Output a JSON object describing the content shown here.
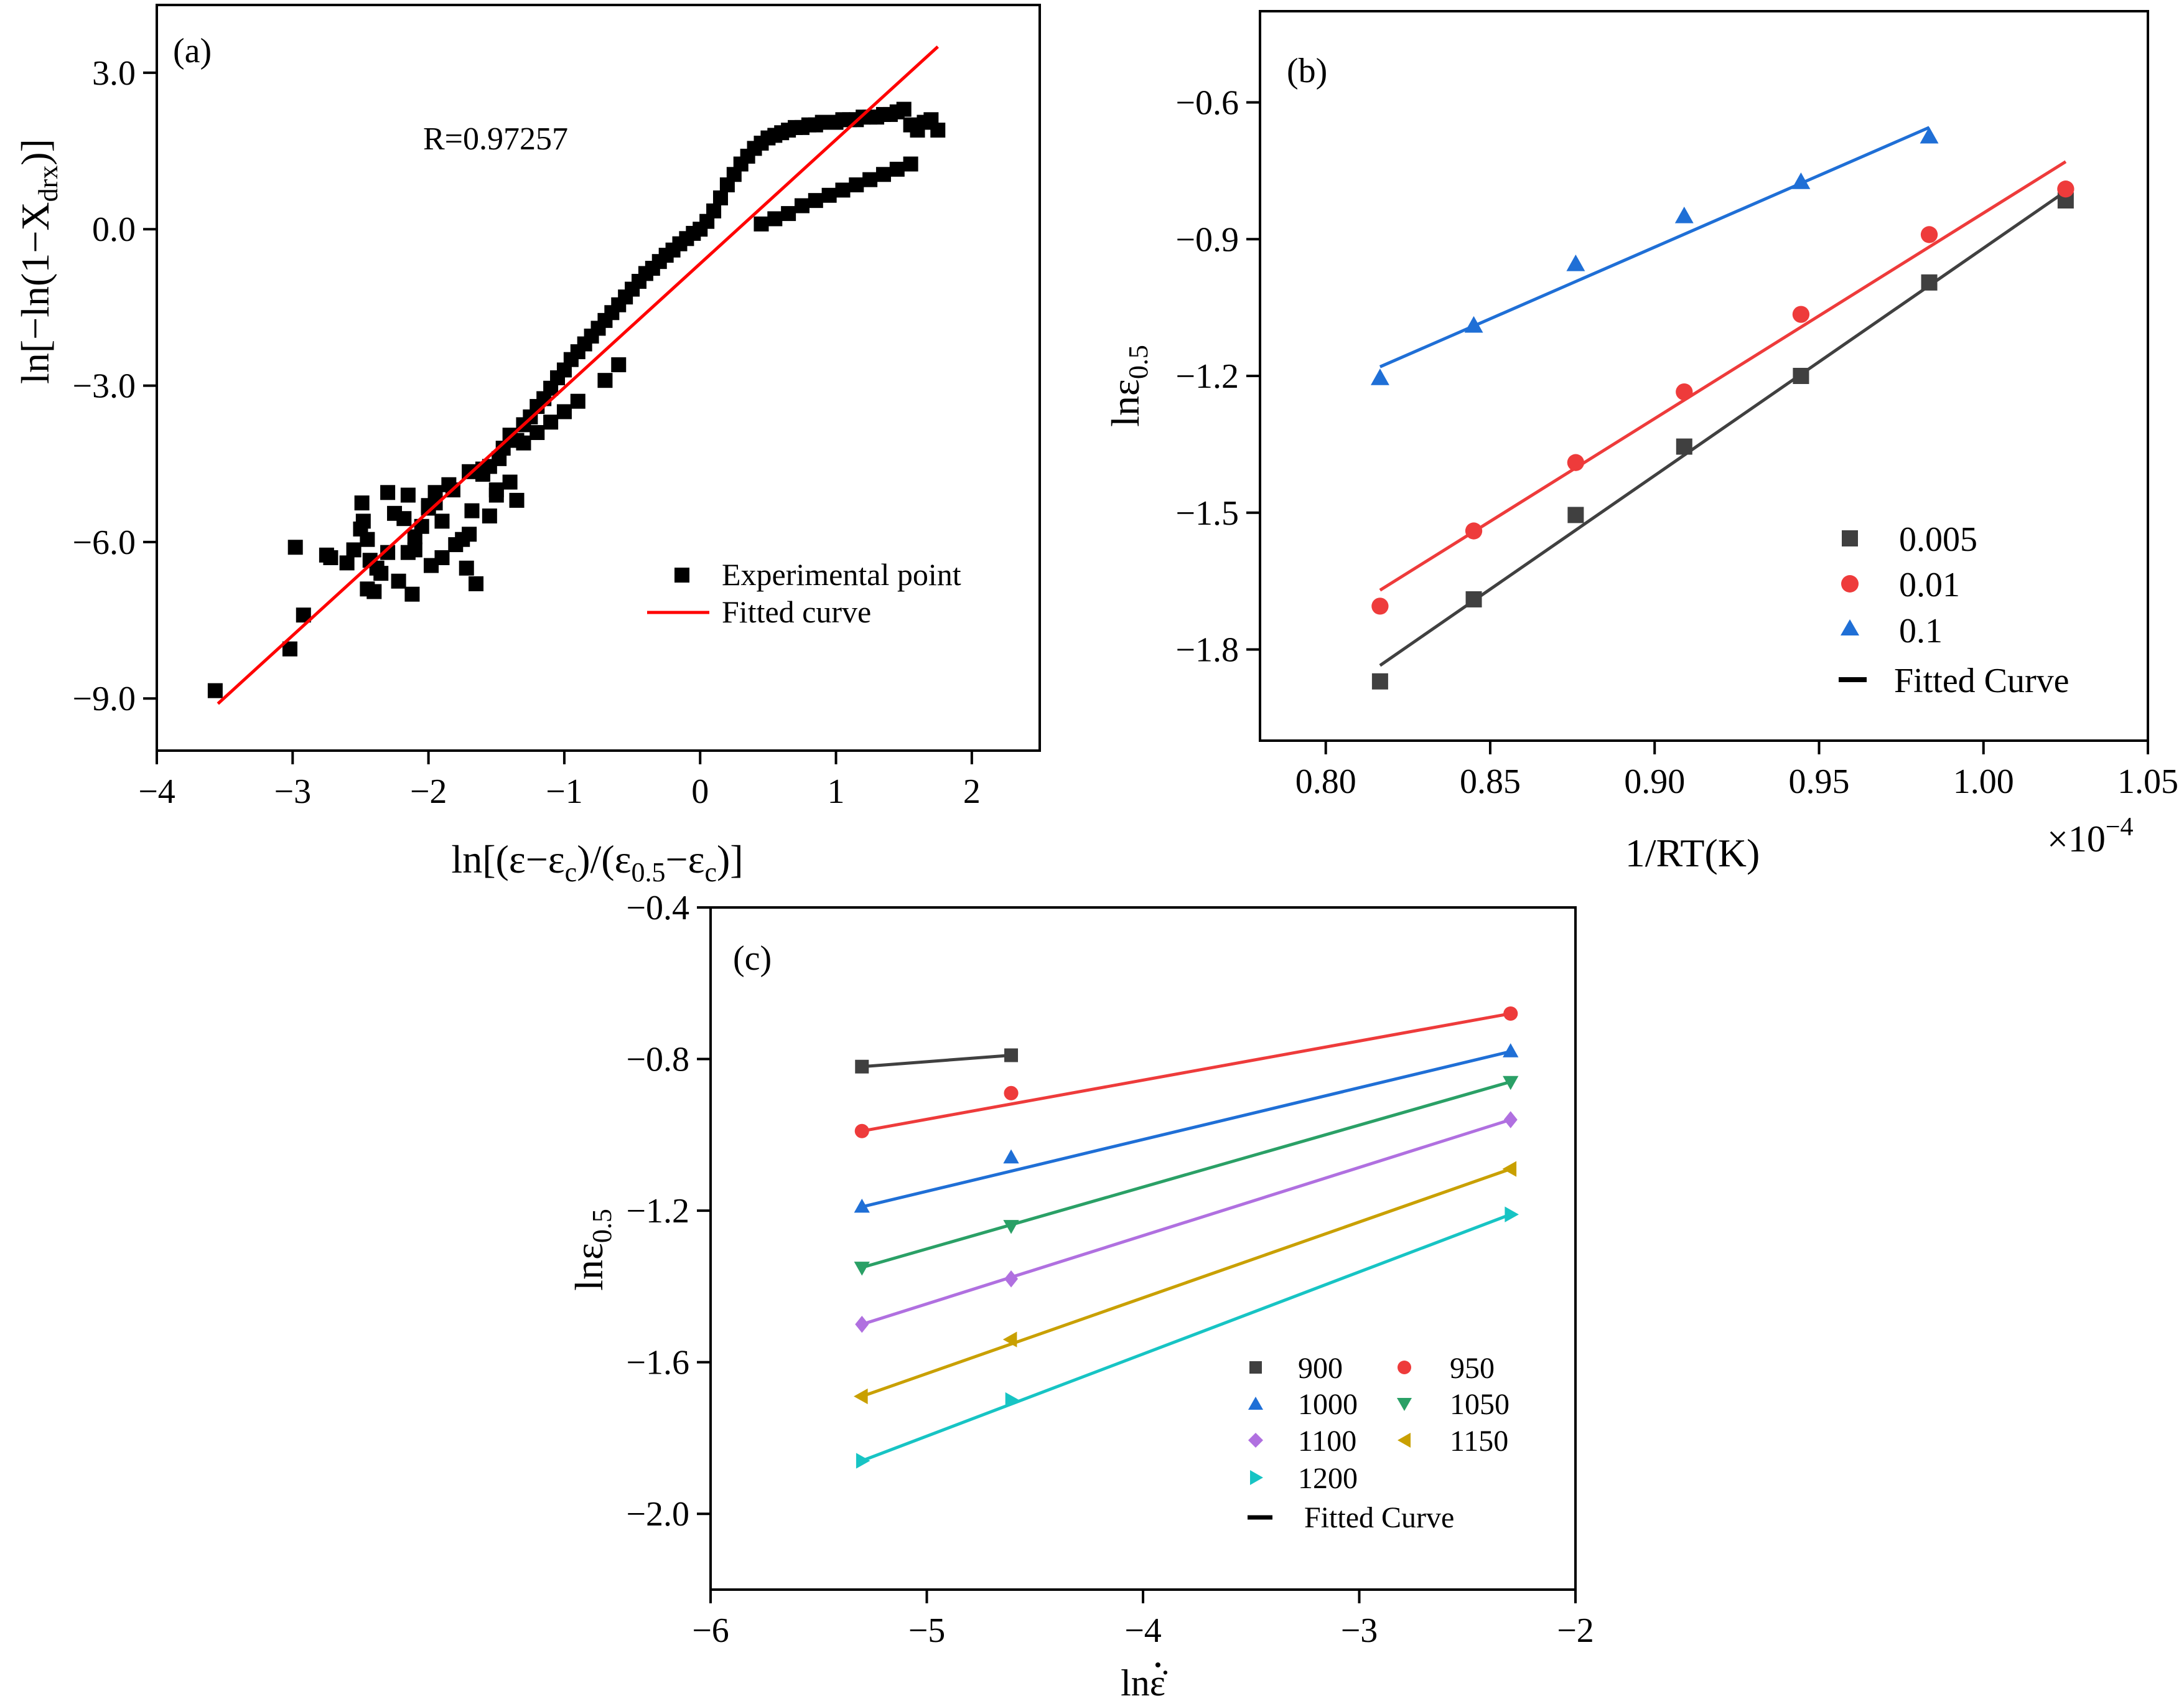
{
  "chart_data": [
    {
      "panel": "(a)",
      "type": "scatter",
      "title": "",
      "xlabel": "ln[(ε−ε_c)/(ε_0.5−ε_c)]",
      "xlabel_main": "ln[(ε−ε",
      "xlabel_sub1": "c",
      "xlabel_mid": ")/(ε",
      "xlabel_sub2": "0.5",
      "xlabel_mid2": "−ε",
      "xlabel_sub3": "c",
      "xlabel_end": ")]",
      "ylabel": "ln[−ln(1−X_drx)]",
      "ylabel_main": "ln[−ln(1−X",
      "ylabel_sub": "drx",
      "ylabel_end": ")]",
      "xlim": [
        -4,
        2.5
      ],
      "ylim": [
        -10,
        4.3
      ],
      "xticks": [
        -4,
        -3,
        -2,
        -1,
        0,
        1,
        2
      ],
      "xtick_labels": [
        "−4",
        "−3",
        "−2",
        "−1",
        "0",
        "1",
        "2"
      ],
      "yticks": [
        -9,
        -6,
        -3,
        0,
        3
      ],
      "ytick_labels": [
        "−9.0",
        "−6.0",
        "−3.0",
        "0.0",
        "3.0"
      ],
      "annotation": "R=0.97257",
      "legend": [
        "Experimental point",
        "Fitted curve"
      ],
      "legend_position": "bottom-right",
      "series": [
        {
          "name": "Experimental point",
          "x": [
            -3.57,
            -3.02,
            -2.92,
            -2.98,
            -2.75,
            -2.72,
            -2.55,
            -2.48,
            -2.5,
            -2.49,
            -2.45,
            -2.43,
            -2.4,
            -2.38,
            -2.35,
            -2.3,
            -2.25,
            -2.22,
            -2.18,
            -2.15,
            -2.12,
            -2.1,
            -2.05,
            -2.0,
            -1.98,
            -1.95,
            -1.9,
            -1.85,
            -1.82,
            -1.8,
            -1.75,
            -1.72,
            -1.7,
            -1.68,
            -1.65,
            -1.6,
            -1.55,
            -1.5,
            -1.48,
            -1.45,
            -1.4,
            -1.35,
            -1.3,
            -1.25,
            -1.2,
            -1.15,
            -1.1,
            -1.05,
            -1.0,
            -0.95,
            -0.9,
            -0.85,
            -0.8,
            -0.75,
            -0.7,
            -0.65,
            -0.6,
            -0.55,
            -0.5,
            -0.45,
            -0.4,
            -0.35,
            -0.3,
            -0.25,
            -0.2,
            -0.15,
            -0.1,
            -0.05,
            0.0,
            0.05,
            0.1,
            0.15,
            0.2,
            0.25,
            0.3,
            0.35,
            0.4,
            0.45,
            0.5,
            0.55,
            0.6,
            0.65,
            0.7,
            0.75,
            0.8,
            0.85,
            0.9,
            0.95,
            1.0,
            1.05,
            1.1,
            1.15,
            1.2,
            1.25,
            1.3,
            1.35,
            1.4,
            1.45,
            1.5,
            1.55,
            1.6,
            1.65,
            1.7,
            1.75,
            0.45,
            0.55,
            0.65,
            0.75,
            0.85,
            0.95,
            1.05,
            1.15,
            1.25,
            1.35,
            1.45,
            1.55,
            -1.3,
            -1.2,
            -1.1,
            -1.0,
            -0.9,
            -1.6,
            -1.5,
            -1.4,
            -2.3,
            -2.1,
            -1.9,
            -1.7,
            -2.15,
            -1.95,
            -2.45,
            -2.6,
            -2.0,
            -1.55,
            -1.35,
            -0.7,
            -0.6
          ],
          "y": [
            -8.85,
            -8.05,
            -7.4,
            -6.1,
            -6.25,
            -6.3,
            -6.15,
            -5.6,
            -5.75,
            -5.25,
            -6.9,
            -6.35,
            -6.95,
            -6.5,
            -6.6,
            -6.2,
            -5.45,
            -6.75,
            -5.55,
            -5.1,
            -7.0,
            -6.15,
            -5.7,
            -5.35,
            -6.45,
            -5.25,
            -6.3,
            -4.9,
            -5.0,
            -6.05,
            -5.95,
            -6.5,
            -4.65,
            -5.4,
            -6.8,
            -4.6,
            -4.55,
            -5.1,
            -4.4,
            -4.2,
            -3.95,
            -4.05,
            -3.75,
            -3.6,
            -3.4,
            -3.25,
            -3.05,
            -2.85,
            -2.7,
            -2.5,
            -2.35,
            -2.2,
            -2.05,
            -1.9,
            -1.75,
            -1.6,
            -1.45,
            -1.3,
            -1.15,
            -1.0,
            -0.85,
            -0.75,
            -0.62,
            -0.5,
            -0.4,
            -0.28,
            -0.18,
            -0.08,
            0.0,
            0.15,
            0.35,
            0.6,
            0.85,
            1.05,
            1.25,
            1.4,
            1.55,
            1.65,
            1.75,
            1.8,
            1.85,
            1.9,
            1.95,
            1.95,
            2.0,
            2.0,
            2.05,
            2.05,
            2.05,
            2.1,
            2.1,
            2.1,
            2.15,
            2.15,
            2.15,
            2.2,
            2.2,
            2.25,
            2.3,
            2.0,
            1.9,
            2.05,
            2.1,
            1.9,
            0.1,
            0.2,
            0.3,
            0.45,
            0.55,
            0.65,
            0.75,
            0.85,
            0.95,
            1.05,
            1.15,
            1.25,
            -4.1,
            -3.9,
            -3.7,
            -3.5,
            -3.3,
            -4.7,
            -5.0,
            -4.85,
            -5.05,
            -5.9,
            -5.6,
            -5.85,
            -6.2,
            -5.05,
            -5.95,
            -6.4,
            -5.3,
            -5.5,
            -5.2,
            -2.9,
            -2.6
          ]
        },
        {
          "name": "Fitted curve",
          "type": "line",
          "color": "#ff0000",
          "x": [
            -3.55,
            1.75
          ],
          "y": [
            -9.1,
            3.5
          ]
        }
      ]
    },
    {
      "panel": "(b)",
      "type": "scatter",
      "title": "",
      "xlabel": "1/RT(K)",
      "x_multiplier": "×10",
      "x_multiplier_exp": "−4",
      "ylabel": "lnε_0.5",
      "ylabel_main": "lnε",
      "ylabel_sub": "0.5",
      "xlim": [
        0.78,
        1.05
      ],
      "ylim": [
        -2.0,
        -0.4
      ],
      "xticks": [
        0.8,
        0.85,
        0.9,
        0.95,
        1.0,
        1.05
      ],
      "xtick_labels": [
        "0.80",
        "0.85",
        "0.90",
        "0.95",
        "1.00",
        "1.05"
      ],
      "yticks": [
        -1.8,
        -1.5,
        -1.2,
        -0.9,
        -0.6
      ],
      "ytick_labels": [
        "−1.8",
        "−1.5",
        "−1.2",
        "−0.9",
        "−0.6"
      ],
      "legend": [
        "0.005",
        "0.01",
        "0.1",
        "Fitted Curve"
      ],
      "legend_position": "bottom-right",
      "series": [
        {
          "name": "0.005",
          "marker": "square",
          "color": "#404040",
          "x": [
            0.8165,
            0.845,
            0.876,
            0.909,
            0.9445,
            0.9835,
            1.025
          ],
          "y": [
            -1.87,
            -1.69,
            -1.505,
            -1.355,
            -1.2,
            -0.995,
            -0.815
          ],
          "fit": {
            "x": [
              0.8165,
              1.025
            ],
            "y": [
              -1.835,
              -0.795
            ]
          }
        },
        {
          "name": "0.01",
          "marker": "circle",
          "color": "#ee3b3b",
          "x": [
            0.8165,
            0.845,
            0.876,
            0.909,
            0.9445,
            0.9835,
            1.025
          ],
          "y": [
            -1.705,
            -1.54,
            -1.39,
            -1.235,
            -1.065,
            -0.89,
            -0.79
          ],
          "fit": {
            "x": [
              0.8165,
              1.025
            ],
            "y": [
              -1.67,
              -0.73
            ]
          }
        },
        {
          "name": "0.1",
          "marker": "triangle-up",
          "color": "#1f6fd6",
          "x": [
            0.8165,
            0.845,
            0.876,
            0.909,
            0.9445,
            0.9835
          ],
          "y": [
            -1.205,
            -1.09,
            -0.955,
            -0.85,
            -0.775,
            -0.675
          ],
          "fit": {
            "x": [
              0.8165,
              0.9835
            ],
            "y": [
              -1.18,
              -0.655
            ]
          }
        }
      ]
    },
    {
      "panel": "(c)",
      "type": "scatter",
      "title": "",
      "xlabel": "lnε̇",
      "ylabel": "lnε_0.5",
      "ylabel_main": "lnε",
      "ylabel_sub": "0.5",
      "xlim": [
        -6,
        -2
      ],
      "ylim": [
        -2.2,
        -0.4
      ],
      "xticks": [
        -6,
        -5,
        -4,
        -3,
        -2
      ],
      "xtick_labels": [
        "−6",
        "−5",
        "−4",
        "−3",
        "−2"
      ],
      "yticks": [
        -2.0,
        -1.6,
        -1.2,
        -0.8,
        -0.4
      ],
      "ytick_labels": [
        "−2.0",
        "−1.6",
        "−1.2",
        "−0.8",
        "−0.4"
      ],
      "legend": [
        "900",
        "950",
        "1000",
        "1050",
        "1100",
        "1150",
        "1200",
        "Fitted Curve"
      ],
      "legend_position": "bottom-right",
      "series": [
        {
          "name": "900",
          "marker": "square",
          "color": "#404040",
          "x": [
            -5.3,
            -4.61
          ],
          "y": [
            -0.82,
            -0.79
          ],
          "fit": {
            "x": [
              -5.3,
              -4.61
            ],
            "y": [
              -0.82,
              -0.79
            ]
          }
        },
        {
          "name": "950",
          "marker": "circle",
          "color": "#ee3b3b",
          "x": [
            -5.3,
            -4.61,
            -2.3
          ],
          "y": [
            -0.99,
            -0.89,
            -0.68
          ],
          "fit": {
            "x": [
              -5.3,
              -2.3
            ],
            "y": [
              -0.99,
              -0.68
            ]
          }
        },
        {
          "name": "1000",
          "marker": "triangle-up",
          "color": "#1f6fd6",
          "x": [
            -5.3,
            -4.61,
            -2.3
          ],
          "y": [
            -1.19,
            -1.06,
            -0.78
          ],
          "fit": {
            "x": [
              -5.3,
              -2.3
            ],
            "y": [
              -1.19,
              -0.78
            ]
          }
        },
        {
          "name": "1050",
          "marker": "triangle-down",
          "color": "#2aa066",
          "x": [
            -5.3,
            -4.61,
            -2.3
          ],
          "y": [
            -1.35,
            -1.24,
            -0.86
          ],
          "fit": {
            "x": [
              -5.3,
              -2.3
            ],
            "y": [
              -1.35,
              -0.86
            ]
          }
        },
        {
          "name": "1100",
          "marker": "diamond",
          "color": "#b070e0",
          "x": [
            -5.3,
            -4.61,
            -2.3
          ],
          "y": [
            -1.5,
            -1.38,
            -0.96
          ],
          "fit": {
            "x": [
              -5.3,
              -2.3
            ],
            "y": [
              -1.5,
              -0.96
            ]
          }
        },
        {
          "name": "1150",
          "marker": "triangle-left",
          "color": "#c9a000",
          "x": [
            -5.3,
            -4.61,
            -2.3
          ],
          "y": [
            -1.69,
            -1.54,
            -1.09
          ],
          "fit": {
            "x": [
              -5.3,
              -2.3
            ],
            "y": [
              -1.69,
              -1.09
            ]
          }
        },
        {
          "name": "1200",
          "marker": "triangle-right",
          "color": "#17c4c4",
          "x": [
            -5.3,
            -4.61,
            -2.3
          ],
          "y": [
            -1.86,
            -1.7,
            -1.21
          ],
          "fit": {
            "x": [
              -5.3,
              -2.3
            ],
            "y": [
              -1.86,
              -1.21
            ]
          }
        }
      ]
    }
  ]
}
